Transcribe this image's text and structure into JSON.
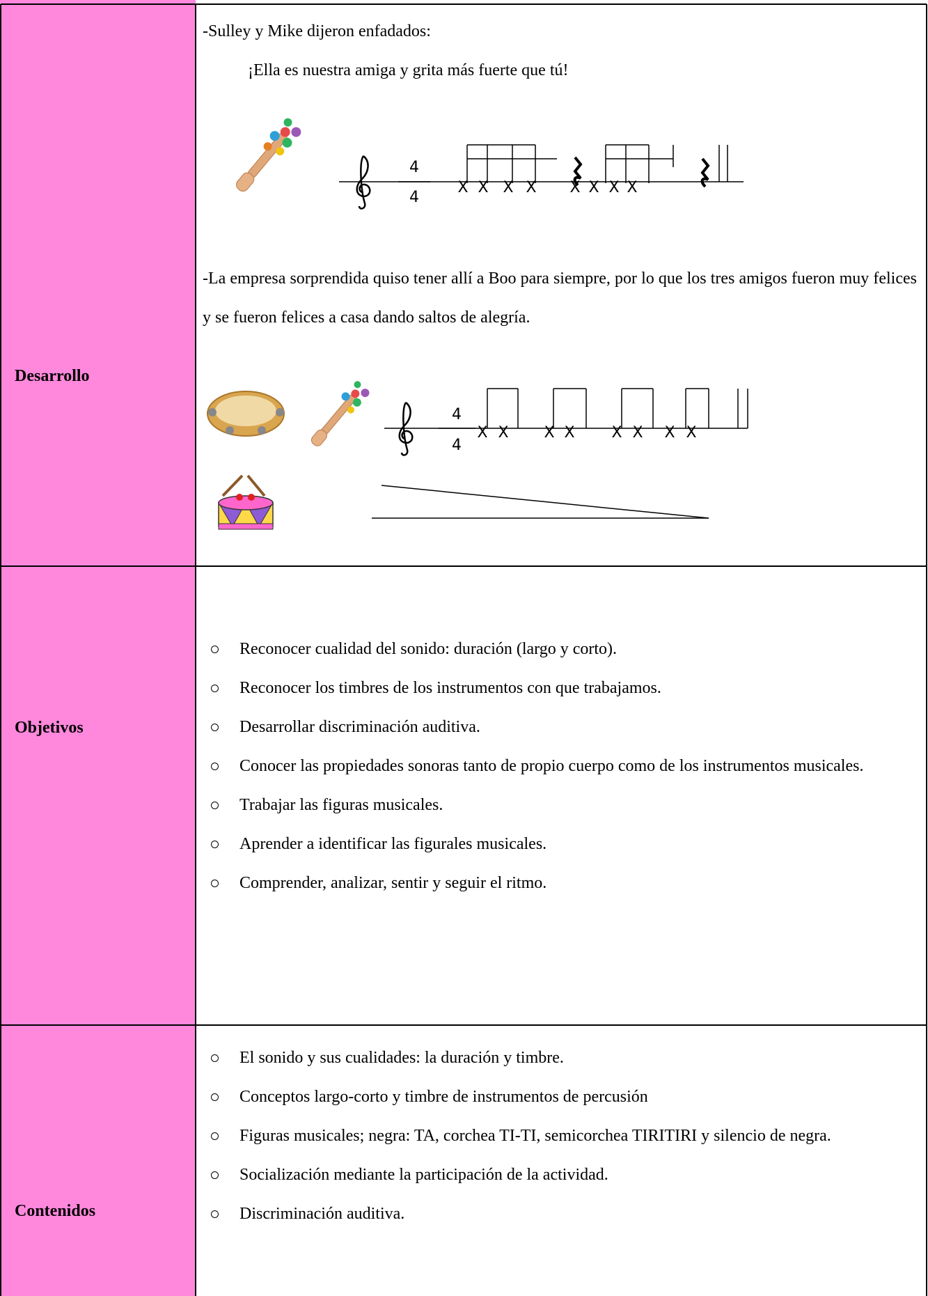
{
  "desarrollo": {
    "label": "Desarrollo",
    "line1": "-Sulley y Mike dijeron enfadados:",
    "line2": "¡Ella es nuestra amiga y grita más fuerte que tú!",
    "staff1": {
      "time_top": "4",
      "time_bottom": "4",
      "noteheads": [
        "X",
        "X",
        "X",
        "X",
        "X",
        "X",
        "X",
        "X"
      ]
    },
    "paragraph": "-La empresa sorprendida quiso tener allí a Boo para siempre, por lo que los tres amigos fueron muy felices y se fueron felices a casa dando saltos de alegría.",
    "staff2": {
      "time_top": "4",
      "time_bottom": "4",
      "noteheads": [
        "X",
        "X",
        "X",
        "X",
        "X",
        "X",
        "X",
        "X"
      ]
    }
  },
  "objetivos": {
    "label": "Objetivos",
    "items": [
      "Reconocer cualidad del sonido: duración (largo y corto).",
      "Reconocer los timbres de los instrumentos con que trabajamos.",
      "Desarrollar discriminación auditiva.",
      "Conocer las propiedades sonoras tanto de propio cuerpo como de los instrumentos musicales.",
      "Trabajar las figuras musicales.",
      "Aprender a identificar las figurales musicales.",
      "Comprender, analizar, sentir y seguir el ritmo."
    ]
  },
  "contenidos": {
    "label": "Contenidos",
    "items": [
      "El sonido y sus cualidades: la duración y timbre.",
      "Conceptos largo-corto y timbre de instrumentos de percusión",
      "Figuras musicales; negra: TA, corchea TI-TI, semicorchea TIRITIRI y silencio de negra.",
      "Socialización mediante la participación de la actividad.",
      "Discriminación auditiva."
    ]
  }
}
